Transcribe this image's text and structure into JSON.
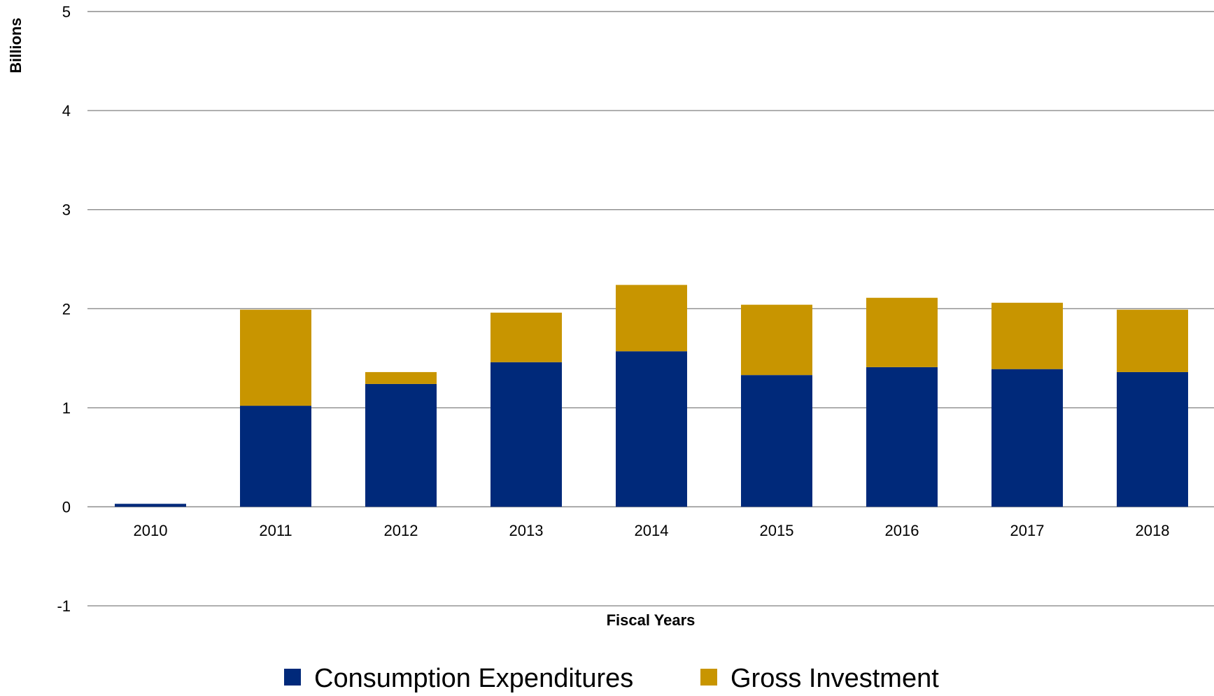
{
  "chart_data": {
    "type": "bar",
    "stacked": true,
    "title": "",
    "xlabel": "Fiscal Years",
    "ylabel": "Billions",
    "ylim": [
      -1,
      5
    ],
    "yticks": [
      "5",
      "4",
      "3",
      "2",
      "1",
      "0",
      "-1"
    ],
    "ytick_values": [
      5,
      4,
      3,
      2,
      1,
      0,
      -1
    ],
    "grid": true,
    "legend_position": "bottom",
    "categories": [
      "2010",
      "2011",
      "2012",
      "2013",
      "2014",
      "2015",
      "2016",
      "2017",
      "2018"
    ],
    "series": [
      {
        "name": "Consumption Expenditures",
        "color": "#00297A",
        "values": [
          0.03,
          1.02,
          1.24,
          1.46,
          1.57,
          1.33,
          1.41,
          1.39,
          1.36
        ]
      },
      {
        "name": "Gross Investment",
        "color": "#C89500",
        "values": [
          0.0,
          0.97,
          0.12,
          0.5,
          0.67,
          0.71,
          0.7,
          0.67,
          0.63
        ]
      }
    ]
  }
}
